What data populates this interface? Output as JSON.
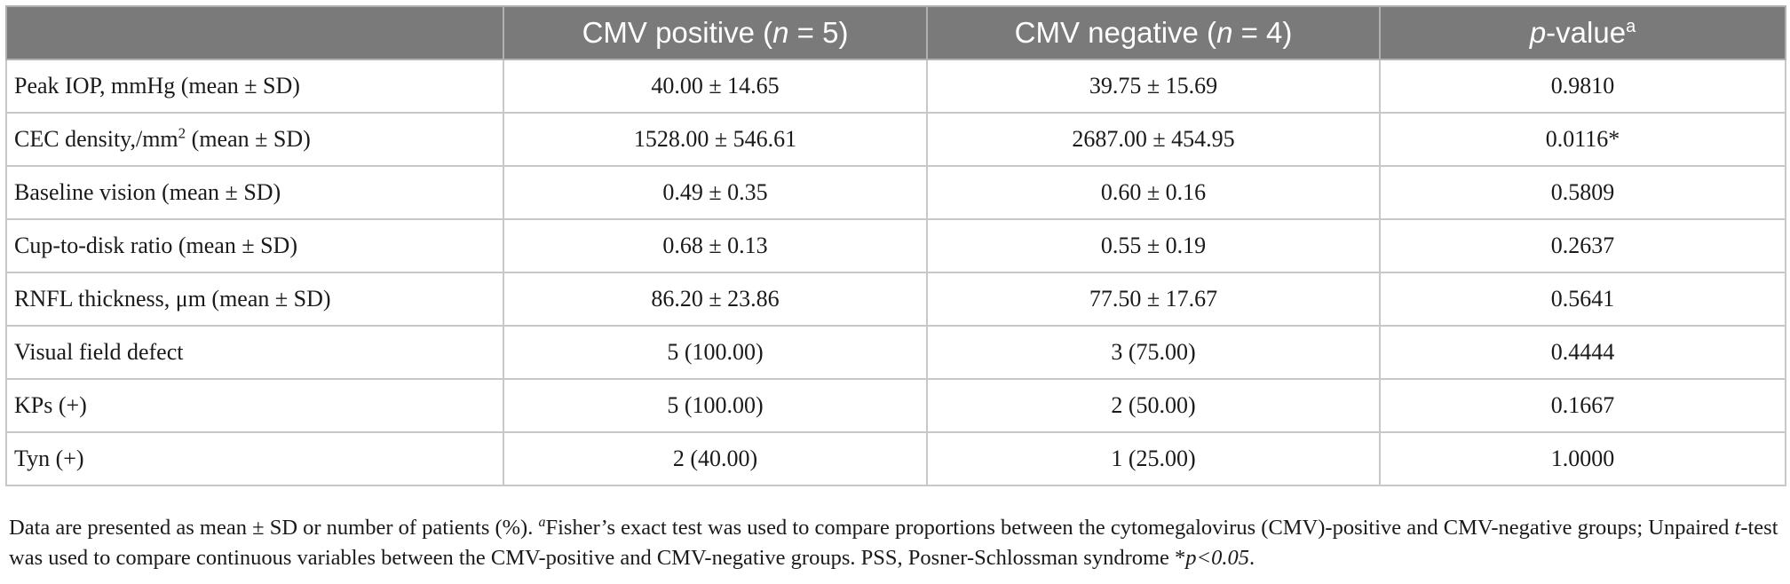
{
  "table": {
    "headers": [
      {
        "pre": "",
        "text": "",
        "ital": "",
        "post": "",
        "sup": ""
      },
      {
        "pre": "CMV positive (",
        "ital": "n",
        "post": " = 5)",
        "sup": ""
      },
      {
        "pre": "CMV negative (",
        "ital": "n",
        "post": " = 4)",
        "sup": ""
      },
      {
        "pre": "",
        "ital": "p",
        "post": "-value",
        "sup": "a"
      }
    ],
    "rows": [
      {
        "label": "Peak IOP, mmHg (mean ± SD)",
        "label_sup": "",
        "label_post": "",
        "pos": "40.00 ± 14.65",
        "neg": "39.75 ± 15.69",
        "p": "0.9810"
      },
      {
        "label": "CEC density,/mm",
        "label_sup": "2",
        "label_post": " (mean ± SD)",
        "pos": "1528.00 ± 546.61",
        "neg": "2687.00 ± 454.95",
        "p": "0.0116*"
      },
      {
        "label": "Baseline vision (mean ± SD)",
        "label_sup": "",
        "label_post": "",
        "pos": "0.49 ± 0.35",
        "neg": "0.60 ± 0.16",
        "p": "0.5809"
      },
      {
        "label": "Cup-to-disk ratio (mean ± SD)",
        "label_sup": "",
        "label_post": "",
        "pos": "0.68 ± 0.13",
        "neg": "0.55 ± 0.19",
        "p": "0.2637"
      },
      {
        "label": "RNFL thickness, μm (mean ± SD)",
        "label_sup": "",
        "label_post": "",
        "pos": "86.20 ± 23.86",
        "neg": "77.50 ± 17.67",
        "p": "0.5641"
      },
      {
        "label": "Visual field defect",
        "label_sup": "",
        "label_post": "",
        "pos": "5 (100.00)",
        "neg": "3 (75.00)",
        "p": "0.4444"
      },
      {
        "label": "KPs (+)",
        "label_sup": "",
        "label_post": "",
        "pos": "5 (100.00)",
        "neg": "2 (50.00)",
        "p": "0.1667"
      },
      {
        "label": "Tyn (+)",
        "label_sup": "",
        "label_post": "",
        "pos": "2 (40.00)",
        "neg": "1 (25.00)",
        "p": "1.0000"
      }
    ]
  },
  "footnote": {
    "part1": "Data are presented as mean ± SD or number of patients (%). ",
    "sup_a": "a",
    "part2": "Fisher’s exact test was used to compare proportions between the cytomegalovirus (CMV)-positive and CMV-negative groups; Unpaired ",
    "t": "t",
    "part3": "-test was used to compare continuous variables between the CMV-positive and CMV-negative groups. PSS, Posner-Schlossman syndrome *",
    "sig": "p<0.05",
    "end": "."
  }
}
